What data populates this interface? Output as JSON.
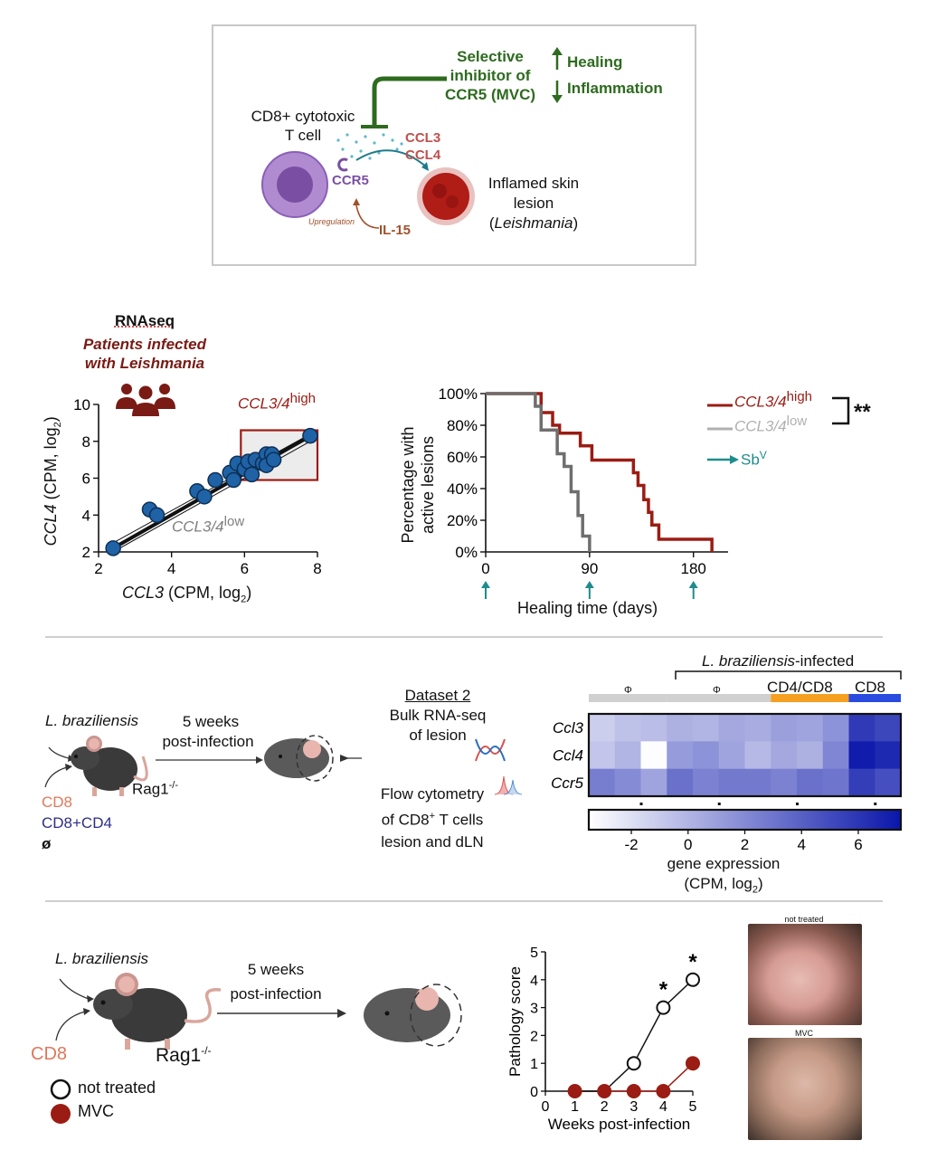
{
  "panel_a": {
    "cell_label_1": "CD8+ cytotoxic",
    "cell_label_2": "T cell",
    "inhibitor_1": "Selective",
    "inhibitor_2": "inhibitor of",
    "inhibitor_3": "CCR5 (MVC)",
    "healing": "Healing",
    "inflammation": "Inflammation",
    "ccl3": "CCL3",
    "ccl4": "CCL4",
    "ccr5": "CCR5",
    "upregulation": "Upregulation",
    "il15": "IL-15",
    "lesion_1": "Inflamed skin",
    "lesion_2": "lesion",
    "lesion_3": "Leishmania",
    "colors": {
      "green": "#2e6b1f",
      "red": "#c0504d",
      "purple": "#7a4fa3",
      "brown": "#a0522d",
      "teal": "#1e7b8a"
    }
  },
  "panel_b": {
    "heading": "RNAseq",
    "subheading_1": "Patients infected",
    "subheading_2": "with Leishmania",
    "icon": "people-group-icon",
    "high_label": "CCL3/4",
    "high_sup": "high",
    "low_label": "CCL3/4",
    "low_sup": "low",
    "xlabel_italic": "CCL3",
    "xlabel_rest": " (CPM, log",
    "xlabel_sub": "2",
    "xlabel_end": ")",
    "ylabel_italic": "CCL4",
    "ylabel_rest": " (CPM, log",
    "ylabel_sub": "2",
    "ylabel_end": ")"
  },
  "panel_c": {
    "ylabel_1": "Percentage with",
    "ylabel_2": "active lesions",
    "xlabel": "Healing time (days)",
    "legend_high": "CCL3/4",
    "legend_high_sup": "high",
    "legend_low": "CCL3/4",
    "legend_low_sup": "low",
    "legend_sb": "Sb",
    "legend_sb_sup": "V",
    "significance": "**"
  },
  "panel_d": {
    "species": "L. braziliensis",
    "duration_1": "5 weeks",
    "duration_2": "post-infection",
    "strain": "Rag1",
    "strain_sup": "-/-",
    "group_1": "CD8",
    "group_2": "CD8+CD4",
    "group_3": "ø",
    "dataset": "Dataset 2",
    "bulk_1": "Bulk RNA-seq",
    "bulk_2": "of lesion",
    "flow_1": "Flow cytometry",
    "flow_2a": "of CD8",
    "flow_2sup": "+",
    "flow_2b": " T cells",
    "flow_3": "lesion and dLN",
    "heat_header": "L. braziliensis-infected",
    "heat_header_italic": "L. braziliensis",
    "heat_header_rest": "-infected",
    "group_phi_1": "Φ",
    "group_phi_2": "Φ",
    "group_cd4cd8": "CD4/CD8",
    "group_cd8": "CD8",
    "genes": [
      "Ccl3",
      "Ccl4",
      "Ccr5"
    ],
    "colorbar_label_1": "gene expression",
    "colorbar_label_2": "(CPM, log",
    "colorbar_label_sub": "2",
    "colorbar_label_end": ")"
  },
  "panel_e": {
    "species": "L. braziliensis",
    "duration_1": "5 weeks",
    "duration_2": "post-infection",
    "group": "CD8",
    "strain": "Rag1",
    "strain_sup": "-/-",
    "legend_not_treated": "not treated",
    "legend_mvc": "MVC",
    "photo_1_label": "not treated",
    "photo_2_label": "MVC",
    "colors": {
      "mvc": "#9b1c13",
      "cd8": "#e0785a"
    }
  },
  "chart_data": [
    {
      "type": "scatter",
      "xlabel": "CCL3 (CPM, log2)",
      "ylabel": "CCL4 (CPM, log2)",
      "xlim": [
        2,
        8
      ],
      "ylim": [
        2,
        10
      ],
      "xticks": [
        2,
        4,
        6,
        8
      ],
      "yticks": [
        2,
        4,
        6,
        8,
        10
      ],
      "points": [
        [
          2.4,
          2.2
        ],
        [
          3.4,
          4.3
        ],
        [
          3.6,
          4.0
        ],
        [
          4.7,
          5.3
        ],
        [
          4.9,
          5.0
        ],
        [
          5.2,
          5.9
        ],
        [
          5.6,
          6.3
        ],
        [
          5.7,
          5.9
        ],
        [
          5.8,
          6.8
        ],
        [
          6.0,
          6.5
        ],
        [
          6.1,
          6.9
        ],
        [
          6.2,
          6.2
        ],
        [
          6.3,
          7.0
        ],
        [
          6.5,
          6.8
        ],
        [
          6.6,
          7.3
        ],
        [
          6.6,
          6.7
        ],
        [
          6.75,
          7.3
        ],
        [
          6.8,
          7.0
        ],
        [
          7.8,
          8.3
        ]
      ],
      "fit": [
        [
          2.4,
          2.2
        ],
        [
          7.9,
          8.4
        ]
      ],
      "highlight_box": {
        "x": [
          5.9,
          8.0
        ],
        "y": [
          5.9,
          8.6
        ]
      }
    },
    {
      "type": "line",
      "xlabel": "Healing time (days)",
      "ylabel": "Percentage with active lesions",
      "xlim": [
        0,
        210
      ],
      "ylim": [
        0,
        100
      ],
      "xticks": [
        0,
        90,
        180
      ],
      "yticks": [
        0,
        20,
        40,
        60,
        80,
        100
      ],
      "arrows_at": [
        0,
        90,
        180
      ],
      "series": [
        {
          "name": "CCL3/4 high",
          "color": "#9b1c13",
          "steps": [
            [
              0,
              100
            ],
            [
              48,
              100
            ],
            [
              48,
              88
            ],
            [
              58,
              88
            ],
            [
              58,
              80
            ],
            [
              64,
              80
            ],
            [
              64,
              75
            ],
            [
              82,
              75
            ],
            [
              82,
              67
            ],
            [
              92,
              67
            ],
            [
              92,
              58
            ],
            [
              128,
              58
            ],
            [
              128,
              50
            ],
            [
              132,
              50
            ],
            [
              132,
              42
            ],
            [
              137,
              42
            ],
            [
              137,
              33
            ],
            [
              141,
              33
            ],
            [
              141,
              25
            ],
            [
              144,
              25
            ],
            [
              144,
              17
            ],
            [
              150,
              17
            ],
            [
              150,
              8
            ],
            [
              196,
              8
            ],
            [
              196,
              0
            ]
          ]
        },
        {
          "name": "CCL3/4 low",
          "color": "#6e6e6e",
          "steps": [
            [
              0,
              100
            ],
            [
              43,
              100
            ],
            [
              43,
              92
            ],
            [
              48,
              92
            ],
            [
              48,
              77
            ],
            [
              62,
              77
            ],
            [
              62,
              62
            ],
            [
              68,
              62
            ],
            [
              68,
              54
            ],
            [
              74,
              54
            ],
            [
              74,
              38
            ],
            [
              80,
              38
            ],
            [
              80,
              23
            ],
            [
              84,
              23
            ],
            [
              84,
              10
            ],
            [
              90,
              10
            ],
            [
              90,
              0
            ]
          ]
        }
      ]
    },
    {
      "type": "heatmap",
      "rows": [
        "Ccl3",
        "Ccl4",
        "Ccr5"
      ],
      "columns": 12,
      "groups": [
        {
          "label": "Φ",
          "span": [
            0,
            3
          ],
          "color": "#d0d0d0"
        },
        {
          "label": "Φ",
          "span": [
            3,
            7
          ],
          "color": "#d0d0d0"
        },
        {
          "label": "CD4/CD8",
          "span": [
            7,
            10
          ],
          "color": "#f5a020"
        },
        {
          "label": "CD8",
          "span": [
            10,
            12
          ],
          "color": "#2a4be0"
        }
      ],
      "values": [
        [
          -1.2,
          -0.6,
          -0.4,
          0.2,
          0.0,
          0.6,
          0.4,
          1.0,
          0.8,
          1.6,
          5.8,
          5.2
        ],
        [
          -0.8,
          0.0,
          -3.4,
          1.2,
          1.6,
          0.8,
          -0.2,
          0.6,
          0.2,
          2.2,
          7.2,
          6.6
        ],
        [
          2.6,
          2.0,
          0.8,
          3.2,
          2.4,
          2.8,
          2.8,
          2.4,
          3.2,
          3.0,
          5.6,
          4.8
        ]
      ],
      "colorbar_range": [
        -3.5,
        7.5
      ],
      "colorbar_ticks": [
        -2,
        0,
        2,
        4,
        6
      ],
      "colorbar_label": "gene expression (CPM, log2)"
    },
    {
      "type": "line",
      "xlabel": "Weeks post-infection",
      "ylabel": "Pathology score",
      "xlim": [
        0,
        5
      ],
      "ylim": [
        0,
        5
      ],
      "xticks": [
        0,
        1,
        2,
        3,
        4,
        5
      ],
      "yticks": [
        0,
        1,
        2,
        3,
        4,
        5
      ],
      "series": [
        {
          "name": "not treated",
          "x": [
            1,
            2,
            3,
            4,
            5
          ],
          "y": [
            0,
            0,
            1,
            3,
            4
          ]
        },
        {
          "name": "MVC",
          "x": [
            1,
            2,
            3,
            4,
            5
          ],
          "y": [
            0,
            0,
            0,
            0,
            1
          ]
        }
      ],
      "significance_at": [
        4,
        5
      ],
      "significance_mark": "*"
    }
  ]
}
